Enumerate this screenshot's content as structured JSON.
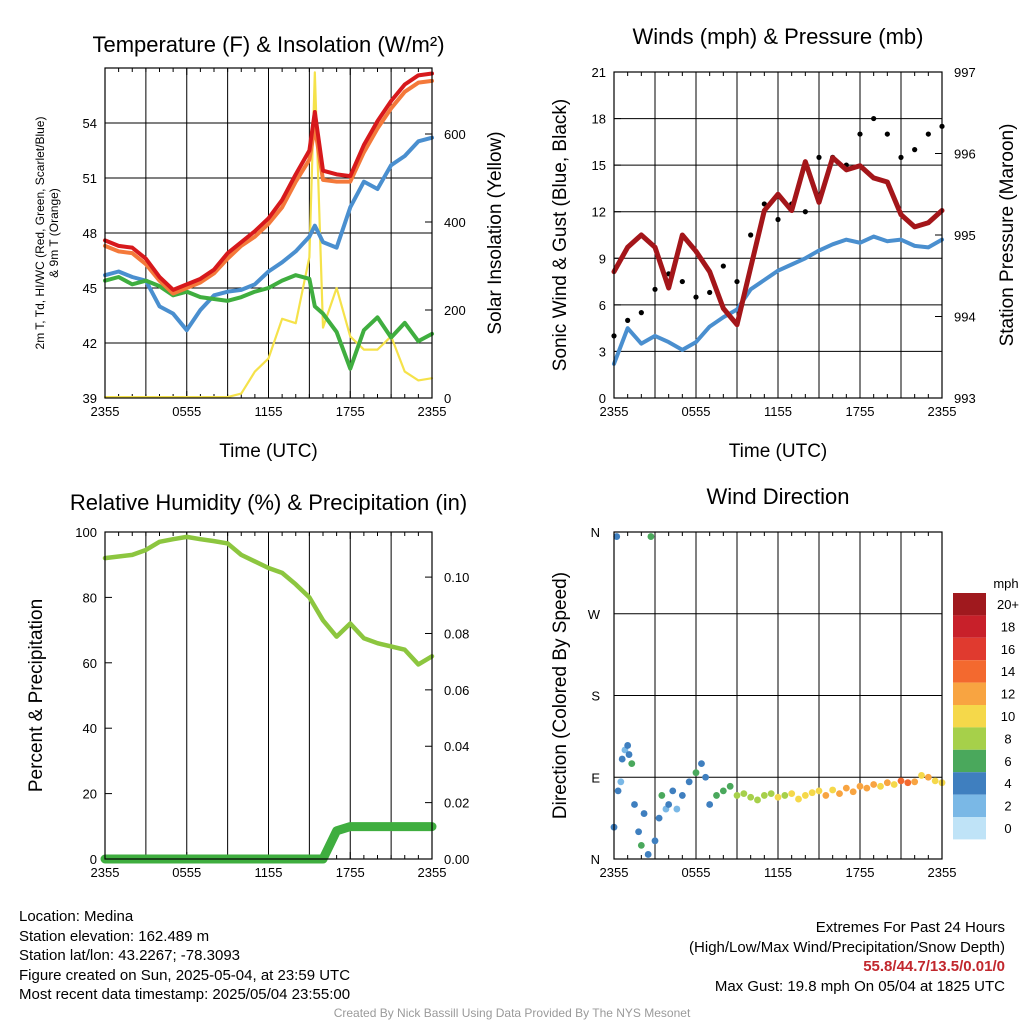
{
  "chart_data": [
    {
      "type": "line",
      "title": "Temperature (F) & Insolation (W/m²)",
      "xlabel": "Time (UTC)",
      "ylabel": "2m T, Td, HI/WC (Red, Green, Scarlet/Blue) & 9m T (Orange)",
      "y2label": "Solar Insolation (Yellow)",
      "x_ticks": [
        "2355",
        "0555",
        "1155",
        "1755",
        "2355"
      ],
      "y_ticks": [
        39,
        42,
        45,
        48,
        51,
        54
      ],
      "y2_ticks": [
        0,
        200,
        400,
        600
      ],
      "ylim": [
        39,
        57
      ],
      "y2lim": [
        0,
        750
      ],
      "grid": true,
      "x_hours": [
        0,
        1,
        2,
        3,
        4,
        5,
        6,
        7,
        8,
        9,
        10,
        11,
        12,
        13,
        14,
        15,
        15.4,
        16,
        17,
        18,
        19,
        20,
        21,
        22,
        23,
        24
      ],
      "series": [
        {
          "key": "temp_2m",
          "color": "#d7191c",
          "axis": "left",
          "values": [
            47.6,
            47.3,
            47.2,
            46.6,
            45.6,
            44.9,
            45.2,
            45.5,
            46.0,
            46.9,
            47.5,
            48.1,
            48.8,
            49.8,
            51.2,
            52.5,
            54.6,
            51.4,
            51.2,
            51.1,
            52.8,
            54.1,
            55.2,
            56.1,
            56.6,
            56.7
          ]
        },
        {
          "key": "temp_9m",
          "color": "#f4793a",
          "axis": "left",
          "values": [
            47.3,
            47.0,
            46.9,
            46.3,
            45.4,
            44.7,
            45.0,
            45.3,
            45.8,
            46.6,
            47.3,
            47.8,
            48.5,
            49.4,
            50.8,
            52.0,
            53.8,
            50.9,
            50.8,
            50.8,
            52.4,
            53.7,
            54.8,
            55.7,
            56.2,
            56.3
          ]
        },
        {
          "key": "dewpoint",
          "color": "#3fae3f",
          "axis": "left",
          "values": [
            45.4,
            45.6,
            45.2,
            45.4,
            45.1,
            44.6,
            44.8,
            44.5,
            44.4,
            44.3,
            44.5,
            44.8,
            45.0,
            45.4,
            45.7,
            45.5,
            44.0,
            43.6,
            42.6,
            40.6,
            42.7,
            43.4,
            42.3,
            43.1,
            42.1,
            42.5
          ]
        },
        {
          "key": "heat_index_wind_chill",
          "color": "#4a8fcf",
          "axis": "left",
          "values": [
            45.7,
            45.9,
            45.6,
            45.4,
            44.0,
            43.6,
            42.7,
            43.8,
            44.6,
            44.8,
            44.9,
            45.2,
            45.9,
            46.4,
            47.0,
            47.8,
            48.4,
            47.5,
            47.2,
            49.4,
            50.8,
            50.4,
            51.7,
            52.2,
            53.0,
            53.2
          ]
        },
        {
          "key": "solar_insolation",
          "color": "#f5e24a",
          "axis": "right",
          "values": [
            2,
            2,
            2,
            2,
            2,
            2,
            2,
            2,
            2,
            2,
            10,
            60,
            90,
            180,
            170,
            320,
            740,
            160,
            250,
            140,
            110,
            110,
            140,
            60,
            40,
            45
          ]
        }
      ]
    },
    {
      "type": "line",
      "title": "Winds (mph) & Pressure (mb)",
      "xlabel": "Time (UTC)",
      "ylabel": "Sonic Wind & Gust (Blue, Black)",
      "y2label": "Station Pressure (Maroon)",
      "x_ticks": [
        "2355",
        "0555",
        "1155",
        "1755",
        "2355"
      ],
      "y_ticks": [
        0,
        3,
        6,
        9,
        12,
        15,
        18,
        21
      ],
      "y2_ticks": [
        993,
        994,
        995,
        996,
        997
      ],
      "ylim": [
        0,
        21
      ],
      "y2lim": [
        993,
        997
      ],
      "grid": true,
      "x_hours": [
        0,
        1,
        2,
        3,
        4,
        5,
        6,
        7,
        8,
        9,
        10,
        11,
        12,
        13,
        14,
        15,
        16,
        17,
        18,
        19,
        20,
        21,
        22,
        23,
        24
      ],
      "series": [
        {
          "key": "sonic_wind",
          "color": "#4a8fcf",
          "axis": "left",
          "values": [
            2.2,
            4.5,
            3.5,
            4.0,
            3.6,
            3.1,
            3.6,
            4.6,
            5.2,
            5.7,
            7.0,
            7.6,
            8.2,
            8.6,
            9.0,
            9.5,
            9.9,
            10.2,
            10.0,
            10.4,
            10.1,
            10.2,
            9.8,
            9.7,
            10.2
          ]
        },
        {
          "key": "station_pressure",
          "color": "#a4161a",
          "axis": "right",
          "values": [
            994.55,
            994.85,
            995.0,
            994.85,
            994.35,
            995.0,
            994.8,
            994.55,
            994.1,
            993.9,
            994.6,
            995.3,
            995.5,
            995.3,
            995.9,
            995.4,
            995.95,
            995.8,
            995.85,
            995.7,
            995.65,
            995.25,
            995.1,
            995.15,
            995.3
          ]
        },
        {
          "key": "gust",
          "color": "#000000",
          "axis": "left",
          "values": [
            4.0,
            5.0,
            5.5,
            7.0,
            8.0,
            7.5,
            6.5,
            6.8,
            8.5,
            7.5,
            10.5,
            12.5,
            11.5,
            12.5,
            12.0,
            15.5,
            15.5,
            15.0,
            17.0,
            18.0,
            17.0,
            15.5,
            16.0,
            17.0,
            17.5
          ]
        }
      ]
    },
    {
      "type": "line",
      "title": "Relative Humidity (%) & Precipitation (in)",
      "xlabel": "",
      "ylabel": "Percent & Precipitation",
      "x_ticks": [
        "2355",
        "0555",
        "1155",
        "1755",
        "2355"
      ],
      "y_ticks": [
        0,
        20,
        40,
        60,
        80,
        100
      ],
      "y2_ticks": [
        "0.00",
        "0.02",
        "0.04",
        "0.06",
        "0.08",
        "0.10"
      ],
      "ylim": [
        0,
        100
      ],
      "y2lim": [
        0,
        0.116
      ],
      "grid": true,
      "x_hours": [
        0,
        1,
        2,
        3,
        4,
        5,
        6,
        7,
        8,
        9,
        10,
        11,
        12,
        13,
        14,
        15,
        16,
        17,
        18,
        19,
        20,
        21,
        22,
        23,
        24
      ],
      "series": [
        {
          "key": "relative_humidity",
          "color": "#8cc63f",
          "axis": "left",
          "values": [
            92.0,
            92.5,
            93.0,
            94.5,
            97.0,
            97.8,
            98.5,
            97.8,
            97.2,
            96.5,
            93.0,
            91.0,
            89.0,
            87.5,
            84.0,
            80.0,
            73.0,
            68.0,
            72.0,
            67.5,
            66.0,
            65.0,
            64.0,
            59.5,
            62.0
          ]
        },
        {
          "key": "precipitation",
          "color": "#3fae3f",
          "axis": "right",
          "values": [
            0,
            0,
            0,
            0,
            0,
            0,
            0,
            0,
            0,
            0,
            0,
            0,
            0,
            0,
            0,
            0,
            0,
            0.01,
            0.0115,
            0.0115,
            0.0115,
            0.0115,
            0.0115,
            0.0115,
            0.0115
          ]
        }
      ]
    },
    {
      "type": "scatter",
      "title": "Wind Direction",
      "ylabel": "Direction (Colored By Speed)",
      "x_ticks": [
        "2355",
        "0555",
        "1155",
        "1755",
        "2355"
      ],
      "y_ticks": [
        "N",
        "E",
        "S",
        "W",
        "N"
      ],
      "ylim": [
        0,
        360
      ],
      "grid": true,
      "colorbar": {
        "title": "mph",
        "labels": [
          "20+",
          "18",
          "16",
          "14",
          "12",
          "10",
          "8",
          "6",
          "4",
          "2",
          "0"
        ],
        "colors": [
          "#a0191e",
          "#c8202a",
          "#e03a2f",
          "#f3692f",
          "#f8a441",
          "#f5d84a",
          "#a6d04a",
          "#4aa85c",
          "#3f7fbf",
          "#7ab8e6",
          "#bfe3f7"
        ]
      },
      "points": [
        {
          "x": 0.0,
          "dir": 35,
          "spd": 3
        },
        {
          "x": 0.2,
          "dir": 355,
          "spd": 3
        },
        {
          "x": 0.3,
          "dir": 75,
          "spd": 4
        },
        {
          "x": 0.5,
          "dir": 85,
          "spd": 2
        },
        {
          "x": 0.6,
          "dir": 110,
          "spd": 3
        },
        {
          "x": 0.8,
          "dir": 120,
          "spd": 2
        },
        {
          "x": 1.0,
          "dir": 125,
          "spd": 3
        },
        {
          "x": 1.1,
          "dir": 115,
          "spd": 4
        },
        {
          "x": 1.3,
          "dir": 105,
          "spd": 5
        },
        {
          "x": 1.5,
          "dir": 60,
          "spd": 3
        },
        {
          "x": 1.8,
          "dir": 30,
          "spd": 4
        },
        {
          "x": 2.0,
          "dir": 15,
          "spd": 5
        },
        {
          "x": 2.2,
          "dir": 50,
          "spd": 4
        },
        {
          "x": 2.5,
          "dir": 5,
          "spd": 4
        },
        {
          "x": 2.7,
          "dir": 355,
          "spd": 6
        },
        {
          "x": 3.0,
          "dir": 20,
          "spd": 3
        },
        {
          "x": 3.3,
          "dir": 45,
          "spd": 4
        },
        {
          "x": 3.5,
          "dir": 70,
          "spd": 5
        },
        {
          "x": 3.8,
          "dir": 55,
          "spd": 2
        },
        {
          "x": 4.0,
          "dir": 60,
          "spd": 3
        },
        {
          "x": 4.3,
          "dir": 75,
          "spd": 4
        },
        {
          "x": 4.6,
          "dir": 55,
          "spd": 2
        },
        {
          "x": 5.0,
          "dir": 70,
          "spd": 3
        },
        {
          "x": 5.5,
          "dir": 85,
          "spd": 4
        },
        {
          "x": 6.0,
          "dir": 95,
          "spd": 5
        },
        {
          "x": 6.4,
          "dir": 105,
          "spd": 4
        },
        {
          "x": 6.7,
          "dir": 90,
          "spd": 3
        },
        {
          "x": 7.0,
          "dir": 60,
          "spd": 4
        },
        {
          "x": 7.5,
          "dir": 70,
          "spd": 6
        },
        {
          "x": 8.0,
          "dir": 75,
          "spd": 6
        },
        {
          "x": 8.5,
          "dir": 80,
          "spd": 6
        },
        {
          "x": 9.0,
          "dir": 70,
          "spd": 7
        },
        {
          "x": 9.5,
          "dir": 72,
          "spd": 8
        },
        {
          "x": 10.0,
          "dir": 68,
          "spd": 7
        },
        {
          "x": 10.5,
          "dir": 65,
          "spd": 8
        },
        {
          "x": 11.0,
          "dir": 70,
          "spd": 7
        },
        {
          "x": 11.5,
          "dir": 72,
          "spd": 8
        },
        {
          "x": 12.0,
          "dir": 68,
          "spd": 9
        },
        {
          "x": 12.5,
          "dir": 70,
          "spd": 8
        },
        {
          "x": 13.0,
          "dir": 72,
          "spd": 9
        },
        {
          "x": 13.5,
          "dir": 66,
          "spd": 10
        },
        {
          "x": 14.0,
          "dir": 70,
          "spd": 9
        },
        {
          "x": 14.5,
          "dir": 73,
          "spd": 9
        },
        {
          "x": 15.0,
          "dir": 75,
          "spd": 10
        },
        {
          "x": 15.5,
          "dir": 70,
          "spd": 11
        },
        {
          "x": 16.0,
          "dir": 76,
          "spd": 10
        },
        {
          "x": 16.5,
          "dir": 72,
          "spd": 11
        },
        {
          "x": 17.0,
          "dir": 78,
          "spd": 12
        },
        {
          "x": 17.5,
          "dir": 74,
          "spd": 11
        },
        {
          "x": 18.0,
          "dir": 80,
          "spd": 12
        },
        {
          "x": 18.5,
          "dir": 78,
          "spd": 12
        },
        {
          "x": 19.0,
          "dir": 82,
          "spd": 11
        },
        {
          "x": 19.5,
          "dir": 80,
          "spd": 10
        },
        {
          "x": 20.0,
          "dir": 84,
          "spd": 11
        },
        {
          "x": 20.5,
          "dir": 82,
          "spd": 10
        },
        {
          "x": 21.0,
          "dir": 86,
          "spd": 13
        },
        {
          "x": 21.5,
          "dir": 84,
          "spd": 14
        },
        {
          "x": 22.0,
          "dir": 85,
          "spd": 11
        },
        {
          "x": 22.5,
          "dir": 92,
          "spd": 10
        },
        {
          "x": 23.0,
          "dir": 90,
          "spd": 11
        },
        {
          "x": 23.5,
          "dir": 86,
          "spd": 10
        },
        {
          "x": 24.0,
          "dir": 84,
          "spd": 10
        }
      ]
    }
  ],
  "footer": {
    "location": "Location: Medina",
    "elevation": "Station elevation: 162.489 m",
    "latlon": "Station lat/lon: 43.2267; -78.3093",
    "created": "Figure created on Sun, 2025-05-04, at 23:59 UTC",
    "timestamp": "Most recent data timestamp: 2025/05/04 23:55:00",
    "extremes_title": "Extremes For Past 24 Hours",
    "extremes_subtitle": "(High/Low/Max Wind/Precipitation/Snow Depth)",
    "extremes_values": "55.8/44.7/13.5/0.01/0",
    "max_gust": "Max Gust: 19.8 mph On 05/04 at 1825 UTC",
    "credit": "Created By Nick Bassill Using Data Provided By The NYS Mesonet"
  }
}
